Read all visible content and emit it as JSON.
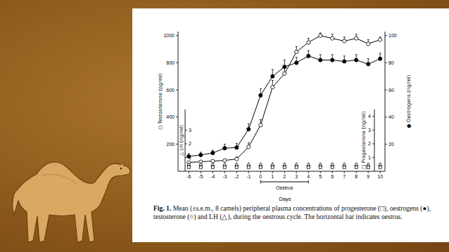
{
  "chart_data": {
    "type": "line",
    "xlabel": "Days",
    "x": [
      -6,
      -5,
      -4,
      -3,
      -2,
      -1,
      0,
      1,
      2,
      3,
      4,
      5,
      6,
      7,
      8,
      9,
      10
    ],
    "xlim": [
      -6.9,
      10.4
    ],
    "xticks": [
      -6,
      -5,
      -4,
      -3,
      -2,
      -1,
      0,
      1,
      2,
      3,
      4,
      5,
      6,
      7,
      8,
      9,
      10
    ],
    "ylabel": "○ Testosterone (pg/ml)",
    "ylim": [
      0,
      1030
    ],
    "yticks": [
      200,
      400,
      600,
      800,
      1000
    ],
    "y2label": "● Oestrogens (ng/ml)",
    "y2lim": [
      0,
      103
    ],
    "y2ticks": [
      20,
      40,
      60,
      80,
      100
    ],
    "y3label": "□ Progesterone (ng/ml)",
    "y3lim": [
      0,
      4.5
    ],
    "y3ticks": [
      1,
      2,
      3,
      4
    ],
    "y4label": "△ LH (ng/ml)",
    "y4lim": [
      0,
      4.5
    ],
    "y4ticks": [
      1,
      2,
      3
    ],
    "series": [
      {
        "axis": "y",
        "color": "#000000",
        "marker": "circle-open",
        "line_style": "solid",
        "values": [
          65,
          70,
          75,
          80,
          90,
          180,
          340,
          620,
          720,
          880,
          950,
          1000,
          980,
          960,
          980,
          940,
          970
        ],
        "errors": [
          10,
          10,
          10,
          10,
          15,
          30,
          40,
          50,
          50,
          40,
          30,
          20,
          30,
          30,
          30,
          30,
          20
        ]
      },
      {
        "axis": "y2",
        "color": "#000000",
        "marker": "circle",
        "line_style": "solid",
        "values": [
          11,
          12,
          13.5,
          17,
          17.5,
          31,
          56,
          70,
          77,
          80,
          85,
          82,
          82,
          81,
          82,
          79,
          83
        ],
        "errors": [
          2,
          2,
          2,
          3,
          3,
          4,
          5,
          5,
          5,
          4,
          4,
          4,
          4,
          4,
          4,
          4,
          4
        ]
      },
      {
        "axis": "y3",
        "color": "#000000",
        "marker": "square-open",
        "line_style": "none",
        "values": [
          0.3,
          0.3,
          0.3,
          0.3,
          0.3,
          0.3,
          0.3,
          0.3,
          0.3,
          0.3,
          0.3,
          0.3,
          0.3,
          0.3,
          0.3,
          0.3,
          0.3
        ]
      },
      {
        "axis": "y4",
        "color": "#000000",
        "marker": "triangle-open",
        "line_style": "none",
        "values": [
          0.5,
          0.5,
          0.5,
          0.5,
          0.5,
          0.5,
          0.5,
          0.5,
          0.5,
          0.5,
          0.5,
          0.5,
          0.5,
          0.5,
          0.5,
          0.5,
          0.5
        ]
      }
    ],
    "oestrus": {
      "label": "Oestrus",
      "start": 0,
      "end": 4
    },
    "figure_label": "Fig. 1.",
    "caption": "Mean (±s.e.m., 8 camels) peripheral plasma concentrations of progesterone (□), oestrogens (●), testosterone (○) and LH (△), during the oestrous cycle. The horizontal bar indicates oestrus."
  }
}
